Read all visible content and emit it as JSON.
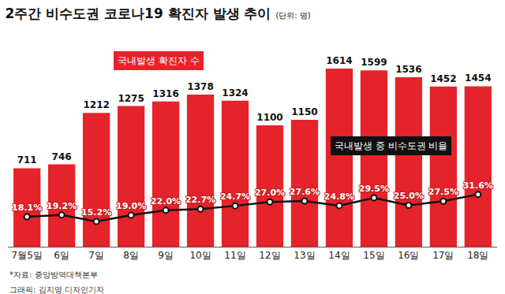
{
  "chart_data": {
    "type": "bar",
    "title": "2주간 비수도권 코로나19 확진자 발생 추이",
    "subtitle": "(단위: 명)",
    "categories": [
      "7월5일",
      "6일",
      "7일",
      "8일",
      "9일",
      "10일",
      "11일",
      "12일",
      "13일",
      "14일",
      "15일",
      "16일",
      "17일",
      "18일"
    ],
    "series": [
      {
        "name": "국내발생 확진자 수",
        "type": "bar",
        "color": "#e5232a",
        "values": [
          711,
          746,
          1212,
          1275,
          1316,
          1378,
          1324,
          1100,
          1150,
          1614,
          1599,
          1536,
          1452,
          1454
        ]
      },
      {
        "name": "국내발생 중 비수도권 비율",
        "type": "line",
        "axis": "y2",
        "color": "#111111",
        "marker": "circle",
        "values": [
          18.1,
          19.2,
          15.2,
          19.0,
          22.0,
          22.7,
          24.7,
          27.0,
          27.6,
          24.8,
          29.5,
          25.0,
          27.5,
          31.6
        ],
        "value_labels": [
          "18.1%",
          "19.2%",
          "15.2%",
          "19.0%",
          "22.0%",
          "22.7%",
          "24.7%",
          "27.0%",
          "27.6%",
          "24.8%",
          "29.5%",
          "25.0%",
          "27.5%",
          "31.6%"
        ]
      }
    ],
    "ylim": [
      0,
      1950
    ],
    "y2lim": [
      0,
      130
    ],
    "data_labels": true,
    "tick_labels": "x",
    "grid": false,
    "annotations": [
      "*자료: 중앙방역대책본부",
      "그래픽: 김지영 디자인기자"
    ]
  }
}
